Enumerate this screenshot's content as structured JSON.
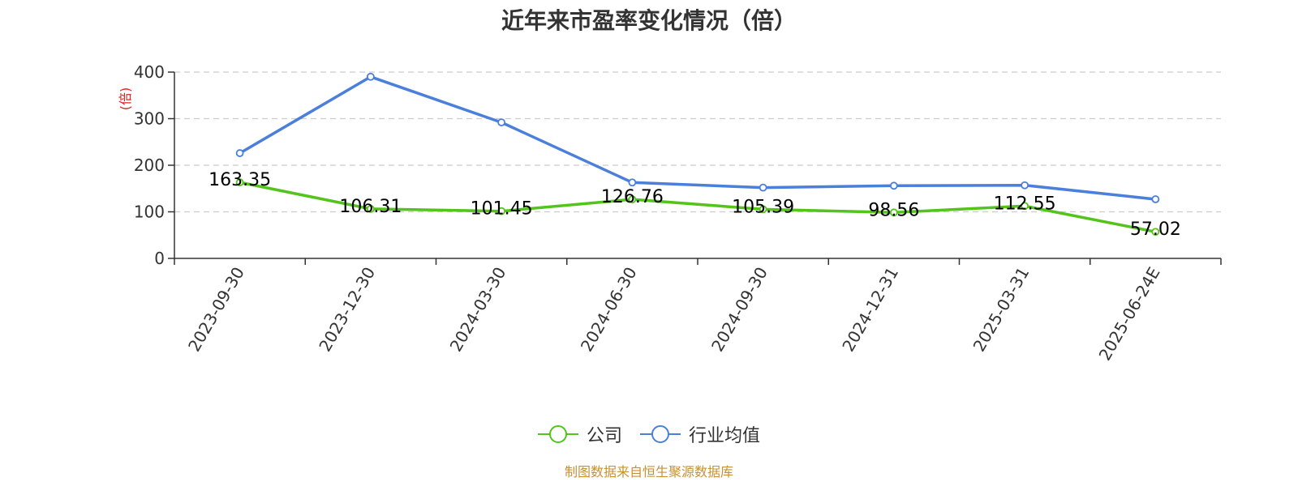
{
  "title": "近年来市盈率变化情况（倍）",
  "source": "制图数据来自恒生聚源数据库",
  "colors": {
    "company": "#52c41a",
    "industry": "#4a7fdc",
    "ylabel": "#e02020",
    "source": "#c8902f",
    "grid": "#cccccc"
  },
  "chart_data": {
    "type": "line",
    "title": "近年来市盈率变化情况（倍）",
    "xlabel": "",
    "ylabel": "(倍)",
    "ylim": [
      0,
      400
    ],
    "yticks": [
      0,
      100,
      200,
      300,
      400
    ],
    "grid": true,
    "legend_position": "bottom-center",
    "categories": [
      "2023-09-30",
      "2023-12-30",
      "2024-03-30",
      "2024-06-30",
      "2024-09-30",
      "2024-12-31",
      "2025-03-31",
      "2025-06-24E"
    ],
    "series": [
      {
        "name": "公司",
        "values": [
          163.35,
          106.31,
          101.45,
          126.76,
          105.39,
          98.56,
          112.55,
          57.02
        ],
        "labels": [
          "163.35",
          "106.31",
          "101.45",
          "126.76",
          "105.39",
          "98.56",
          "112.55",
          "57.02"
        ]
      },
      {
        "name": "行业均值",
        "values": [
          226,
          390,
          292,
          163,
          152,
          156,
          157,
          127
        ]
      }
    ]
  }
}
